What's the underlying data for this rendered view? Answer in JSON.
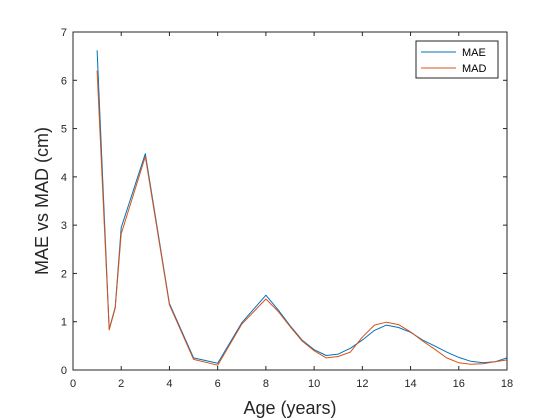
{
  "chart_data": {
    "type": "line",
    "title": "",
    "xlabel": "Age (years)",
    "ylabel": "MAE vs MAD (cm)",
    "xlim": [
      0,
      18
    ],
    "ylim": [
      0,
      7
    ],
    "xticks": [
      0,
      2,
      4,
      6,
      8,
      10,
      12,
      14,
      16,
      18
    ],
    "yticks": [
      0,
      1,
      2,
      3,
      4,
      5,
      6,
      7
    ],
    "grid": false,
    "legend_position": "top-right",
    "series": [
      {
        "name": "MAE",
        "color": "#0072BD",
        "x": [
          1,
          1.5,
          1.75,
          2,
          3,
          4,
          5,
          6,
          7,
          8,
          8.5,
          9,
          9.5,
          10,
          10.5,
          11,
          11.5,
          12,
          12.5,
          13,
          13.5,
          14,
          14.5,
          15,
          15.5,
          16,
          16.5,
          17,
          17.5,
          18
        ],
        "y": [
          6.62,
          0.85,
          1.3,
          2.95,
          4.48,
          1.38,
          0.25,
          0.14,
          0.98,
          1.55,
          1.25,
          0.92,
          0.62,
          0.42,
          0.3,
          0.33,
          0.45,
          0.62,
          0.82,
          0.93,
          0.88,
          0.78,
          0.62,
          0.5,
          0.37,
          0.26,
          0.18,
          0.15,
          0.17,
          0.25
        ]
      },
      {
        "name": "MAD",
        "color": "#D95319",
        "x": [
          1,
          1.5,
          1.75,
          2,
          3,
          4,
          5,
          6,
          7,
          8,
          8.5,
          9,
          9.5,
          10,
          10.5,
          11,
          11.5,
          12,
          12.5,
          13,
          13.5,
          14,
          14.5,
          15,
          15.5,
          16,
          16.5,
          17,
          17.5,
          18
        ],
        "y": [
          6.2,
          0.83,
          1.28,
          2.82,
          4.42,
          1.35,
          0.22,
          0.1,
          0.95,
          1.47,
          1.22,
          0.9,
          0.6,
          0.4,
          0.25,
          0.28,
          0.37,
          0.68,
          0.93,
          0.99,
          0.94,
          0.79,
          0.6,
          0.43,
          0.25,
          0.15,
          0.12,
          0.13,
          0.17,
          0.21
        ]
      }
    ]
  }
}
